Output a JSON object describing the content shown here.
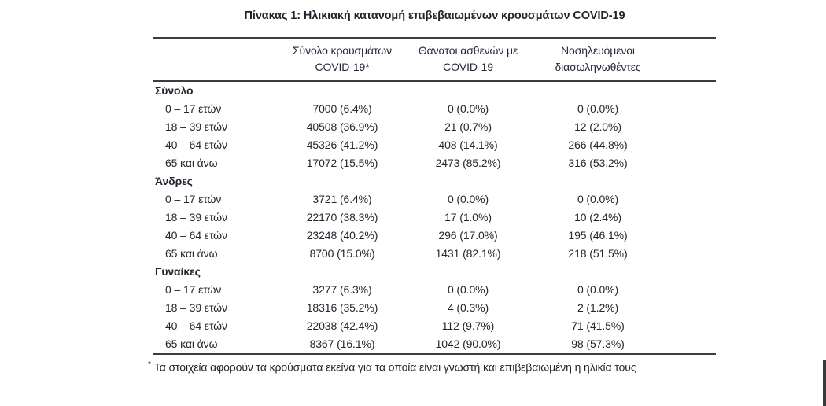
{
  "title": "Πίνακας 1: Ηλικιακή κατανομή επιβεβαιωμένων κρουσμάτων COVID-19",
  "table": {
    "columns": [
      {
        "line1": "Σύνολο κρουσμάτων",
        "line2": "COVID-19*"
      },
      {
        "line1": "Θάνατοι ασθενών με",
        "line2": "COVID-19"
      },
      {
        "line1": "Νοσηλευόμενοι",
        "line2": "διασωληνωθέντες"
      }
    ],
    "sections": [
      {
        "label": "Σύνολο",
        "rows": [
          {
            "age": "0 – 17 ετών",
            "cases": "7000 (6.4%)",
            "deaths": "0 (0.0%)",
            "intubated": "0 (0.0%)"
          },
          {
            "age": "18 – 39 ετών",
            "cases": "40508 (36.9%)",
            "deaths": "21 (0.7%)",
            "intubated": "12 (2.0%)"
          },
          {
            "age": "40 – 64 ετών",
            "cases": "45326 (41.2%)",
            "deaths": "408 (14.1%)",
            "intubated": "266 (44.8%)"
          },
          {
            "age": "65 και άνω",
            "cases": "17072 (15.5%)",
            "deaths": "2473 (85.2%)",
            "intubated": "316 (53.2%)"
          }
        ]
      },
      {
        "label": "Άνδρες",
        "rows": [
          {
            "age": "0 – 17 ετών",
            "cases": "3721 (6.4%)",
            "deaths": "0 (0.0%)",
            "intubated": "0 (0.0%)"
          },
          {
            "age": "18 – 39 ετών",
            "cases": "22170 (38.3%)",
            "deaths": "17 (1.0%)",
            "intubated": "10 (2.4%)"
          },
          {
            "age": "40 – 64 ετών",
            "cases": "23248 (40.2%)",
            "deaths": "296 (17.0%)",
            "intubated": "195 (46.1%)"
          },
          {
            "age": "65 και άνω",
            "cases": "8700 (15.0%)",
            "deaths": "1431 (82.1%)",
            "intubated": "218 (51.5%)"
          }
        ]
      },
      {
        "label": "Γυναίκες",
        "rows": [
          {
            "age": "0 – 17 ετών",
            "cases": "3277 (6.3%)",
            "deaths": "0 (0.0%)",
            "intubated": "0 (0.0%)"
          },
          {
            "age": "18 – 39 ετών",
            "cases": "18316 (35.2%)",
            "deaths": "4 (0.3%)",
            "intubated": "2 (1.2%)"
          },
          {
            "age": "40 – 64 ετών",
            "cases": "22038 (42.4%)",
            "deaths": "112 (9.7%)",
            "intubated": "71 (41.5%)"
          },
          {
            "age": "65 και άνω",
            "cases": "8367 (16.1%)",
            "deaths": "1042 (90.0%)",
            "intubated": "98 (57.3%)"
          }
        ]
      }
    ]
  },
  "footnote": {
    "marker": "*",
    "text": "Τα στοιχεία αφορούν τα κρούσματα εκείνα για τα οποία είναι γνωστή και επιβεβαιωμένη η ηλικία τους"
  },
  "colors": {
    "rule": "#3d3d3d",
    "text": "#22262f",
    "background": "#ffffff"
  }
}
